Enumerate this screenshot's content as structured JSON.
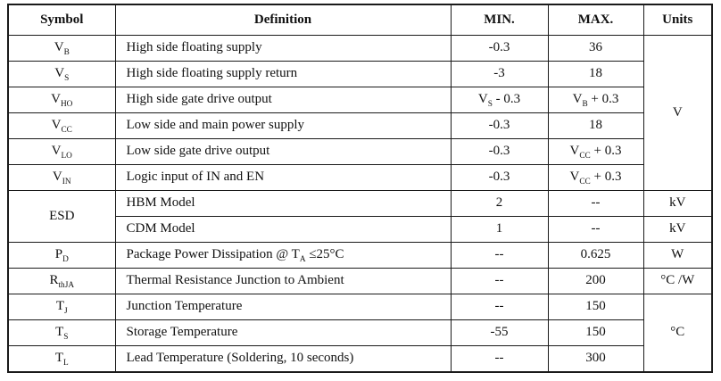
{
  "table": {
    "border_color": "#1a1a1a",
    "header": {
      "symbol": "Symbol",
      "definition": "Definition",
      "min": "MIN.",
      "max": "MAX.",
      "units": "Units"
    },
    "rows": [
      {
        "symbol": [
          {
            "t": "V"
          },
          {
            "t": "B",
            "sub": true
          }
        ],
        "definition": "High side floating supply",
        "min": "-0.3",
        "max": "36",
        "units": "V"
      },
      {
        "symbol": [
          {
            "t": "V"
          },
          {
            "t": "S",
            "sub": true
          }
        ],
        "definition": "High side floating supply return",
        "min": "-3",
        "max": "18"
      },
      {
        "symbol": [
          {
            "t": "V"
          },
          {
            "t": "HO",
            "sub": true
          }
        ],
        "definition": "High side gate drive output",
        "min": [
          {
            "t": "V"
          },
          {
            "t": "S",
            "sub": true
          },
          {
            "t": " - 0.3"
          }
        ],
        "max": [
          {
            "t": "V"
          },
          {
            "t": "B",
            "sub": true
          },
          {
            "t": " + 0.3"
          }
        ]
      },
      {
        "symbol": [
          {
            "t": "V"
          },
          {
            "t": "CC",
            "sub": true
          }
        ],
        "definition": "Low side and main power supply",
        "min": "-0.3",
        "max": "18"
      },
      {
        "symbol": [
          {
            "t": "V"
          },
          {
            "t": "LO",
            "sub": true
          }
        ],
        "definition": "Low side gate drive output",
        "min": "-0.3",
        "max": [
          {
            "t": "V"
          },
          {
            "t": "CC",
            "sub": true
          },
          {
            "t": " + 0.3"
          }
        ]
      },
      {
        "symbol": [
          {
            "t": "V"
          },
          {
            "t": "IN",
            "sub": true
          }
        ],
        "definition": "Logic input of IN and EN",
        "min": "-0.3",
        "max": [
          {
            "t": "V"
          },
          {
            "t": "CC",
            "sub": true
          },
          {
            "t": " + 0.3"
          }
        ]
      },
      {
        "symbol": "ESD",
        "definition": "HBM Model",
        "min": "2",
        "max": "--",
        "units": "kV"
      },
      {
        "definition": "CDM Model",
        "min": "1",
        "max": "--",
        "units": "kV"
      },
      {
        "symbol": [
          {
            "t": "P"
          },
          {
            "t": "D",
            "sub": true
          }
        ],
        "definition": [
          {
            "t": "Package Power Dissipation @ T"
          },
          {
            "t": "A",
            "sub": true
          },
          {
            "t": " ≤25°C"
          }
        ],
        "min": "--",
        "max": "0.625",
        "units": "W"
      },
      {
        "symbol": [
          {
            "t": "R"
          },
          {
            "t": "thJA",
            "sub": true
          }
        ],
        "definition": "Thermal Resistance Junction to Ambient",
        "min": "--",
        "max": "200",
        "units": "°C /W"
      },
      {
        "symbol": [
          {
            "t": "T"
          },
          {
            "t": "J",
            "sub": true
          }
        ],
        "definition": "Junction Temperature",
        "min": "--",
        "max": "150",
        "units": "°C"
      },
      {
        "symbol": [
          {
            "t": "T"
          },
          {
            "t": "S",
            "sub": true
          }
        ],
        "definition": "Storage Temperature",
        "min": "-55",
        "max": "150"
      },
      {
        "symbol": [
          {
            "t": "T"
          },
          {
            "t": "L",
            "sub": true
          }
        ],
        "definition": "Lead Temperature (Soldering, 10 seconds)",
        "min": "--",
        "max": "300"
      }
    ]
  }
}
